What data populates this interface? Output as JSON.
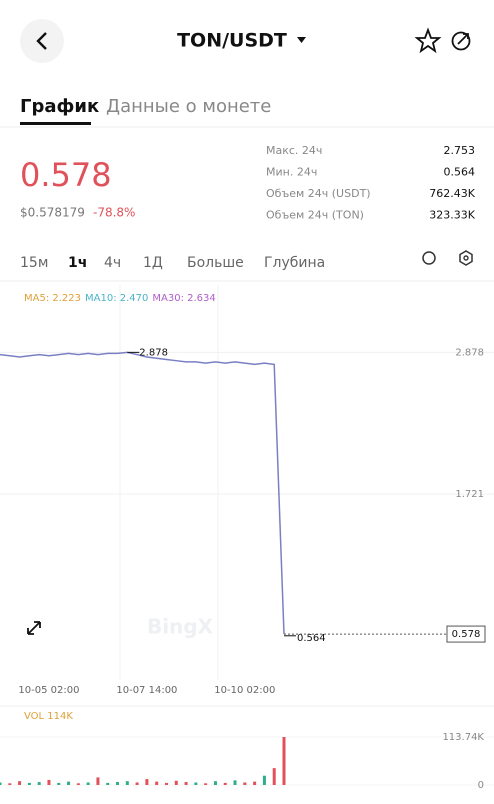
{
  "header": {
    "title": "TON/USDT"
  },
  "tabs": [
    "График",
    "Данные о монете"
  ],
  "price": {
    "last": "0.578",
    "usd": "$0.578179",
    "change": "-78.8%"
  },
  "stats": [
    [
      "Макс. 24ч",
      "2.753"
    ],
    [
      "Мин. 24ч",
      "0.564"
    ],
    [
      "Объем 24ч (USDT)",
      "762.43K"
    ],
    [
      "Объем 24ч (TON)",
      "323.33K"
    ]
  ],
  "intervals": [
    "15м",
    "1ч",
    "4ч",
    "1Д",
    "Больше",
    "Глубина"
  ],
  "watermark": "BingX",
  "chart_data": {
    "type": "line",
    "ma_legend": [
      {
        "text": "MA5: 2.223",
        "color": "#e0a03a"
      },
      {
        "text": "MA10: 2.470",
        "color": "#4bb3c9"
      },
      {
        "text": "MA30: 2.634",
        "color": "#b05fc9"
      }
    ],
    "categories": [
      null,
      null,
      null,
      null,
      null,
      "10-05 02:00",
      null,
      null,
      null,
      null,
      null,
      null,
      null,
      null,
      null,
      "10-07 14:00",
      null,
      null,
      null,
      null,
      null,
      null,
      null,
      null,
      null,
      "10-10 02:00",
      null,
      null,
      null,
      null
    ],
    "series": [
      {
        "color": "#7a7fc4",
        "values": [
          2.86,
          2.85,
          2.84,
          2.85,
          2.86,
          2.85,
          2.86,
          2.87,
          2.86,
          2.87,
          2.86,
          2.87,
          2.87,
          2.878,
          2.86,
          2.84,
          2.83,
          2.82,
          2.81,
          2.8,
          2.8,
          2.79,
          2.8,
          2.79,
          2.8,
          2.79,
          2.78,
          2.79,
          2.78,
          0.578
        ]
      }
    ],
    "ylim": [
      0.203,
      3.428
    ],
    "yticks": [
      2.878,
      1.721
    ],
    "grid": true,
    "high": 2.878,
    "low": 0.564,
    "current": 0.578,
    "volume": {
      "label": "VOL 114K",
      "ylim": [
        0,
        113.74
      ],
      "yticks": [
        {
          "value": 113.74,
          "label": "113.74K"
        },
        0
      ],
      "values": [
        6,
        4,
        9,
        5,
        7,
        12,
        5,
        8,
        4,
        6,
        18,
        5,
        7,
        9,
        6,
        14,
        8,
        5,
        10,
        7,
        6,
        4,
        9,
        5,
        11,
        6,
        8,
        22,
        40,
        113.74
      ]
    }
  }
}
